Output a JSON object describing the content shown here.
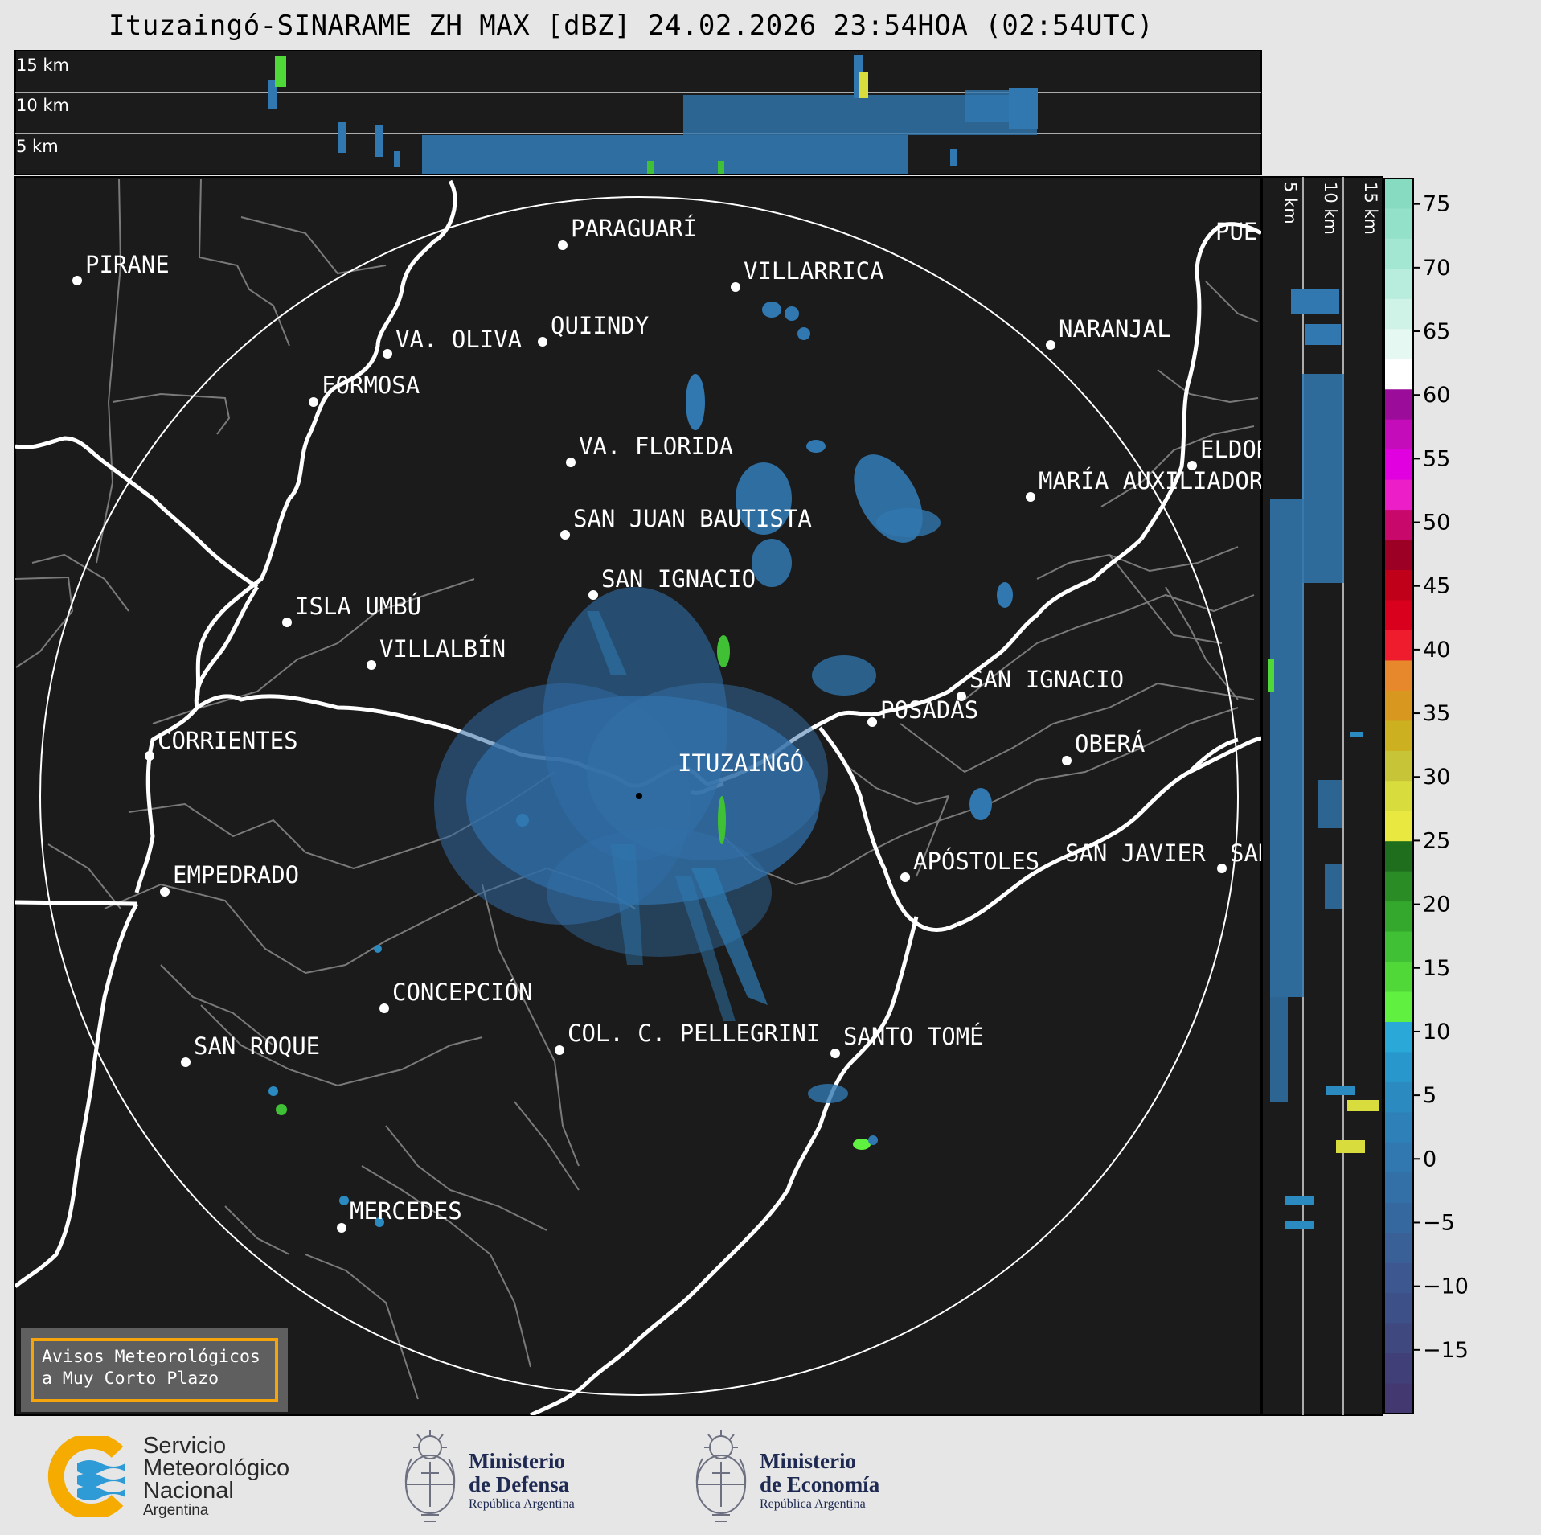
{
  "title": "Ituzaingó-SINARAME ZH MAX [dBZ] 24.02.2026 23:54HOA (02:54UTC)",
  "radar_center": "ITUZAINGÓ",
  "cities": [
    {
      "name": "PARAGUARÍ"
    },
    {
      "name": "VILLARRICA"
    },
    {
      "name": "PIRANE"
    },
    {
      "name": "QUIINDY"
    },
    {
      "name": "VA. OLIVA"
    },
    {
      "name": "NARANJAL"
    },
    {
      "name": "FORMOSA"
    },
    {
      "name": "VA. FLORIDA"
    },
    {
      "name": "ELDOR"
    },
    {
      "name": "MARÍA AUXILIADOR"
    },
    {
      "name": "SAN JUAN BAUTISTA"
    },
    {
      "name": "SAN IGNACIO"
    },
    {
      "name": "ISLA UMBÚ"
    },
    {
      "name": "VILLALBÍN"
    },
    {
      "name": "SAN IGNACIO"
    },
    {
      "name": "POSADAS"
    },
    {
      "name": "CORRIENTES"
    },
    {
      "name": "ITUZAINGÓ"
    },
    {
      "name": "OBERÁ"
    },
    {
      "name": "APÓSTOLES"
    },
    {
      "name": "SAN JAVIER"
    },
    {
      "name": "SAN"
    },
    {
      "name": "EMPEDRADO"
    },
    {
      "name": "CONCEPCIÓN"
    },
    {
      "name": "COL. C. PELLEGRINI"
    },
    {
      "name": "SANTO TOMÉ"
    },
    {
      "name": "SAN ROQUE"
    },
    {
      "name": "MERCEDES"
    },
    {
      "name": "PUE"
    }
  ],
  "height_labels": [
    "15 km",
    "10 km",
    "5 km"
  ],
  "colorbar": {
    "unit": "dBZ",
    "ticks": [
      "75",
      "70",
      "65",
      "60",
      "55",
      "50",
      "45",
      "40",
      "35",
      "30",
      "25",
      "20",
      "15",
      "10",
      "5",
      "0",
      "−5",
      "−10",
      "−15"
    ],
    "colors": [
      "#86dbc0",
      "#94e1c9",
      "#a3e6d2",
      "#b8ecdc",
      "#d0f3e8",
      "#e6f8f2",
      "#ffffff",
      "#9c0c9a",
      "#c40cba",
      "#e000e0",
      "#ec1ec8",
      "#c8086a",
      "#9c0024",
      "#c00018",
      "#d8001c",
      "#ee1c2c",
      "#e8882c",
      "#d89820",
      "#ccb020",
      "#c8c438",
      "#d8dc3c",
      "#e8e840",
      "#1e6e1e",
      "#2a8c24",
      "#34a82c",
      "#40c034",
      "#50d838",
      "#60f040",
      "#2aa8d8",
      "#2898cc",
      "#2b8ac0",
      "#2e80b8",
      "#3178b0",
      "#3470a8",
      "#3668a0",
      "#3a6098",
      "#3d5890",
      "#3e5088",
      "#404880",
      "#413f78",
      "#433870"
    ],
    "min_dbz": -20,
    "max_dbz": 77
  },
  "notice": {
    "line1": "Avisos Meteorológicos",
    "line2": "a Muy Corto Plazo"
  },
  "logos": {
    "smn": {
      "line1": "Servicio",
      "line2": "Meteorológico",
      "line3": "Nacional",
      "line4": "Argentina"
    },
    "defensa": {
      "line1": "Ministerio",
      "line2": "de Defensa",
      "line3": "República Argentina"
    },
    "economia": {
      "line1": "Ministerio",
      "line2": "de Economía",
      "line3": "República Argentina"
    }
  }
}
